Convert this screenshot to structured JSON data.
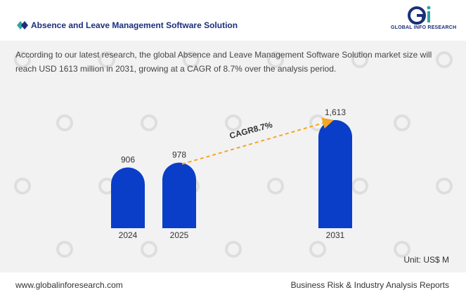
{
  "header": {
    "title": "Absence and Leave Management Software Solution",
    "logo_text": "GLOBAL INFO RESEARCH"
  },
  "description": "According to our latest research, the global Absence and Leave Management Software Solution market size will reach USD 1613 million in 2031, growing at a CAGR of 8.7% over the analysis period.",
  "unit_label": "Unit: US$ M",
  "footer": {
    "website": "www.globalinforesearch.com",
    "tagline": "Business Risk & Industry Analysis Reports"
  },
  "colors": {
    "bar": "#0a3ec9",
    "title": "#1c2f7a",
    "cagr_arrow": "#f5a623",
    "background": "#f2f2f2"
  },
  "chart_data": {
    "type": "bar",
    "categories": [
      "2024",
      "2025",
      "2031"
    ],
    "values": [
      906,
      978,
      1613
    ],
    "value_labels": [
      "906",
      "978",
      "1,613"
    ],
    "annotation": "CAGR8.7%",
    "ylim": [
      0,
      1613
    ]
  }
}
